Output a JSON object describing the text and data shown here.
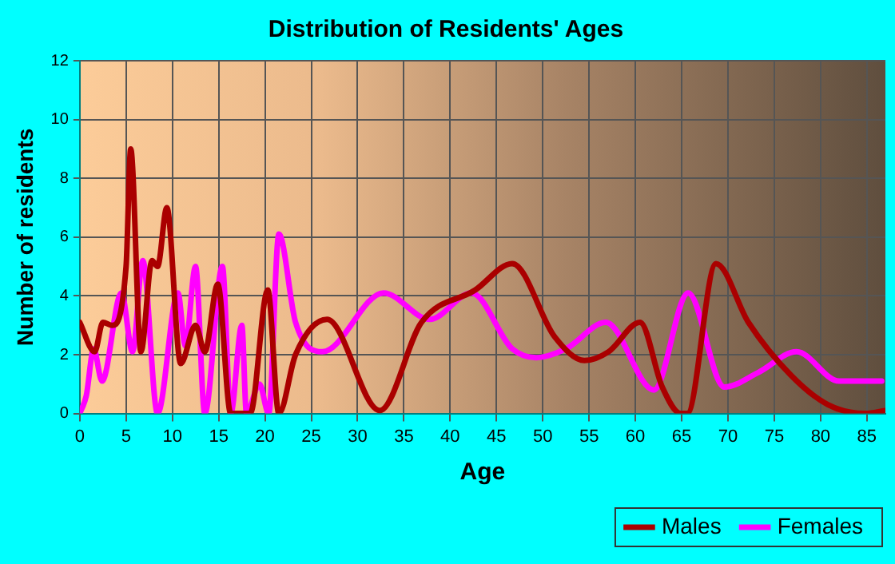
{
  "chart_data": {
    "type": "line",
    "title": "Distribution of Residents' Ages",
    "xlabel": "Age",
    "ylabel": "Number of residents",
    "xlim": [
      0,
      87
    ],
    "xticks": [
      0,
      5,
      10,
      15,
      20,
      25,
      30,
      35,
      40,
      45,
      50,
      55,
      60,
      65,
      70,
      75,
      80,
      85
    ],
    "ylim": [
      0,
      12
    ],
    "yticks": [
      0,
      2,
      4,
      6,
      8,
      10,
      12
    ],
    "grid": true,
    "legend": "bottom right",
    "marker": "none",
    "line_style": "solid",
    "series": [
      {
        "name": "Males",
        "color": "#aa0000",
        "x": [
          0,
          1.6,
          2.5,
          3.5,
          5,
          5.5,
          6.6,
          7.8,
          8.4,
          9.4,
          10.9,
          12.5,
          13.5,
          14.9,
          16.3,
          18.4,
          20.3,
          21.5,
          23.3,
          26.7,
          32.4,
          36.9,
          42.7,
          46.7,
          51.3,
          54.5,
          57.1,
          60.5,
          62.9,
          64.9,
          65.6,
          68.7,
          72.2,
          76.8,
          80.8,
          84.8,
          87
        ],
        "values": [
          3.1,
          2.1,
          3.1,
          3,
          5,
          9,
          2.1,
          5.2,
          5,
          7,
          1.7,
          3,
          2.1,
          4.4,
          0,
          0,
          4.2,
          0,
          2,
          3.2,
          0.1,
          3.1,
          4.2,
          5.1,
          2.6,
          1.8,
          2.1,
          3.1,
          0.9,
          0,
          0,
          5.1,
          3.1,
          1.3,
          0.3,
          0,
          0.1
        ]
      },
      {
        "name": "Females",
        "color": "#ff00ff",
        "x": [
          0,
          0.7,
          1.5,
          2.4,
          4.5,
          5.7,
          6.8,
          8.4,
          10.6,
          11.4,
          12.5,
          13.5,
          15.4,
          16.3,
          17.5,
          18,
          19.4,
          20.4,
          21.5,
          23.3,
          26.2,
          32.8,
          37.8,
          42.3,
          46.7,
          49.3,
          52.5,
          56.8,
          62,
          65.7,
          69.6,
          73.3,
          77.4,
          82,
          86.6
        ],
        "values": [
          0,
          0.6,
          2.2,
          1.1,
          4.1,
          2.1,
          5.2,
          0,
          4.1,
          2.3,
          5,
          0,
          5,
          0,
          3,
          0,
          1,
          0,
          6.1,
          3.1,
          2.1,
          4.1,
          3.2,
          4.1,
          2.2,
          1.9,
          2.2,
          3.1,
          0.8,
          4.1,
          0.9,
          1.4,
          2.1,
          1.1,
          1.1
        ]
      }
    ]
  }
}
